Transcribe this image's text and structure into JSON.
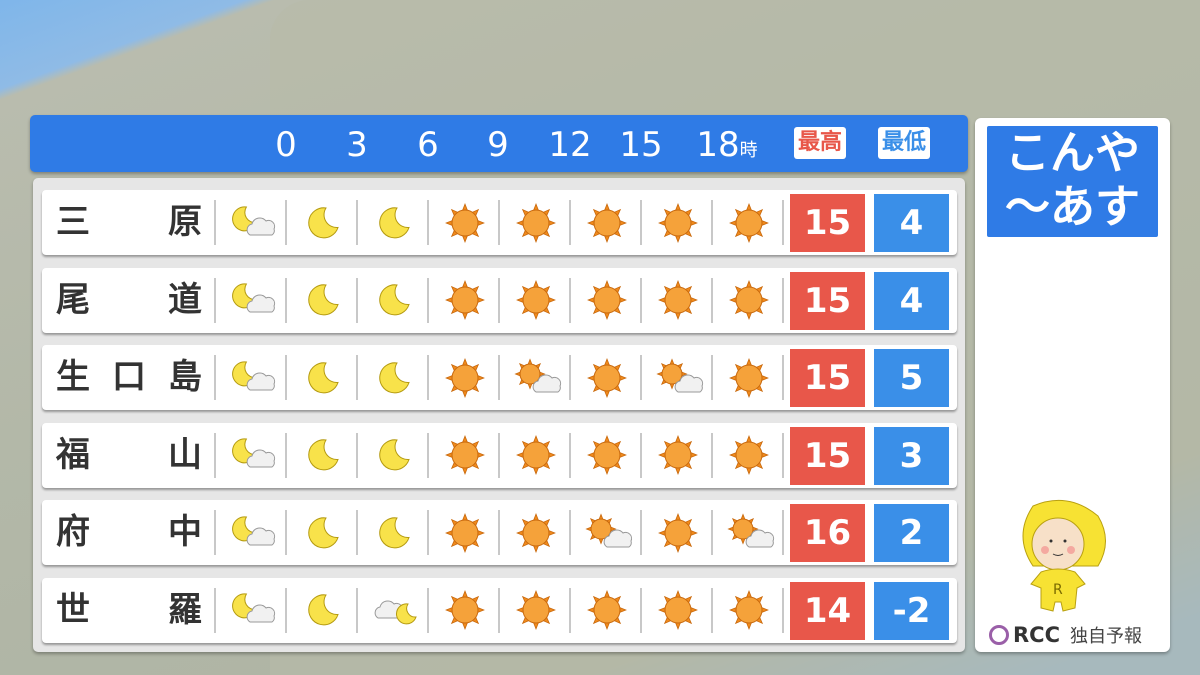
{
  "header": {
    "hours": [
      "0",
      "3",
      "6",
      "9",
      "12",
      "15",
      "18"
    ],
    "hour_unit": "時",
    "max_label": "最高",
    "min_label": "最低",
    "temp_unit": "℃"
  },
  "colors": {
    "accent": "#2f7be6",
    "max": "#e8574a",
    "min": "#3a8fe8"
  },
  "rows": [
    {
      "name": [
        "三",
        "原"
      ],
      "icons": [
        "moon-cloud",
        "moon",
        "moon",
        "sun",
        "sun",
        "sun",
        "sun",
        "sun"
      ],
      "max": "15",
      "min": "4"
    },
    {
      "name": [
        "尾",
        "道"
      ],
      "icons": [
        "moon-cloud",
        "moon",
        "moon",
        "sun",
        "sun",
        "sun",
        "sun",
        "sun"
      ],
      "max": "15",
      "min": "4"
    },
    {
      "name": [
        "生",
        "口",
        "島"
      ],
      "icons": [
        "moon-cloud",
        "moon",
        "moon",
        "sun",
        "sun-cloud",
        "sun",
        "sun-cloud",
        "sun"
      ],
      "max": "15",
      "min": "5"
    },
    {
      "name": [
        "福",
        "山"
      ],
      "icons": [
        "moon-cloud",
        "moon",
        "moon",
        "sun",
        "sun",
        "sun",
        "sun",
        "sun"
      ],
      "max": "15",
      "min": "3"
    },
    {
      "name": [
        "府",
        "中"
      ],
      "icons": [
        "moon-cloud",
        "moon",
        "moon",
        "sun",
        "sun",
        "sun-cloud",
        "sun",
        "sun-cloud"
      ],
      "max": "16",
      "min": "2"
    },
    {
      "name": [
        "世",
        "羅"
      ],
      "icons": [
        "moon-cloud",
        "moon",
        "cloud-moon",
        "sun",
        "sun",
        "sun",
        "sun",
        "sun"
      ],
      "max": "14",
      "min": "-2"
    }
  ],
  "side": {
    "title_line1": "こんや",
    "title_line2": "〜あす",
    "brand": "RCC",
    "brand_note": "独自予報"
  }
}
